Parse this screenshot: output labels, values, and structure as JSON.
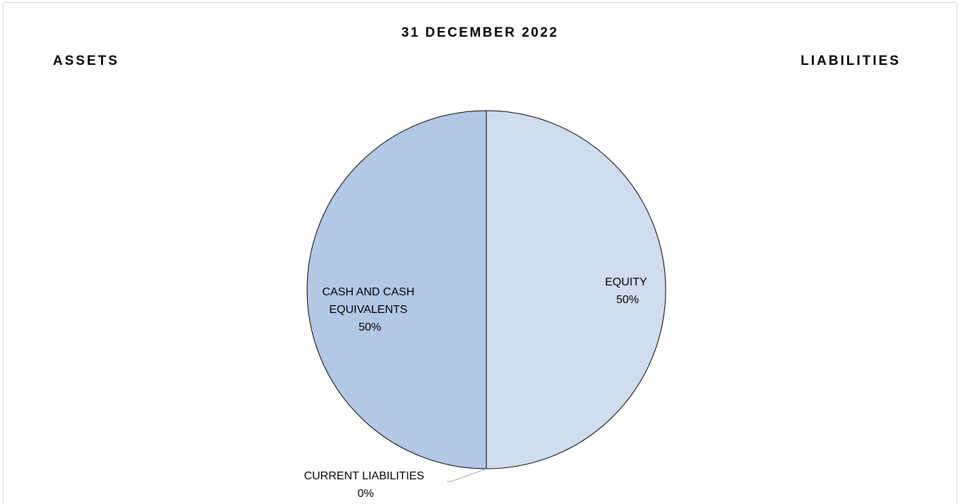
{
  "chart_data": {
    "type": "pie",
    "title": "31 DECEMBER 2022",
    "left_heading": "ASSETS",
    "right_heading": "LIABILITIES",
    "slices": [
      {
        "label": "EQUITY",
        "value": 50,
        "percent_label": "50%",
        "color": "#d0ddee"
      },
      {
        "label": "CURRENT LIABILITIES",
        "value": 0,
        "percent_label": "0%",
        "color": "#c5d4ea"
      },
      {
        "label": "CASH AND CASH EQUIVALENTS",
        "label_lines": [
          "CASH AND CASH",
          "EQUIVALENTS"
        ],
        "value": 50,
        "percent_label": "50%",
        "color": "#b3c8e6"
      }
    ]
  }
}
